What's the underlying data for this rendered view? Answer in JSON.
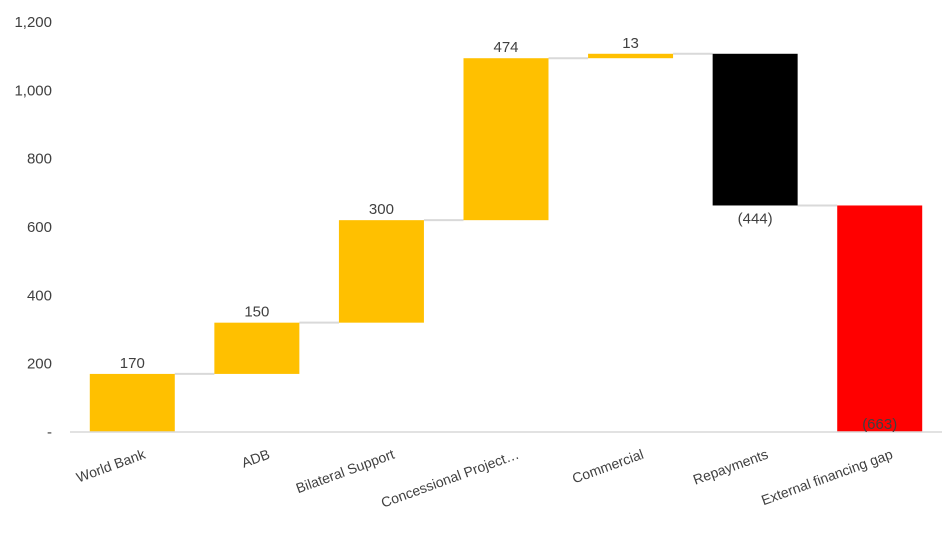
{
  "chart_data": {
    "type": "bar",
    "subtype": "waterfall",
    "title": "",
    "xlabel": "",
    "ylabel": "",
    "ylim": [
      0,
      1200
    ],
    "yticks": [
      0,
      200,
      400,
      600,
      800,
      1000,
      1200
    ],
    "ytick_labels": [
      "-",
      "200",
      "400",
      "600",
      "800",
      "1,000",
      "1,200"
    ],
    "grid": false,
    "legend": "none",
    "categories": [
      "World Bank",
      "ADB",
      "Bilateral Support",
      "Concessional  Project…",
      "Commercial",
      "Repayments",
      "External financing gap"
    ],
    "values": [
      170,
      150,
      300,
      474,
      13,
      -444,
      -663
    ],
    "bar_bottoms": [
      0,
      170,
      320,
      620,
      1094,
      663,
      0
    ],
    "bar_tops": [
      170,
      320,
      620,
      1094,
      1107,
      1107,
      663
    ],
    "data_labels": [
      "170",
      "150",
      "300",
      "474",
      "13",
      "(444)",
      "(663)"
    ],
    "colors": {
      "inflow": "#FFC000",
      "repayment": "#000000",
      "gap": "#FF0000",
      "connector": "#D9D9D9",
      "axis": "#D9D9D9",
      "text": "#404040",
      "label_on_red": "#FFFFFF"
    },
    "bar_color_keys": [
      "inflow",
      "inflow",
      "inflow",
      "inflow",
      "inflow",
      "repayment",
      "gap"
    ]
  }
}
